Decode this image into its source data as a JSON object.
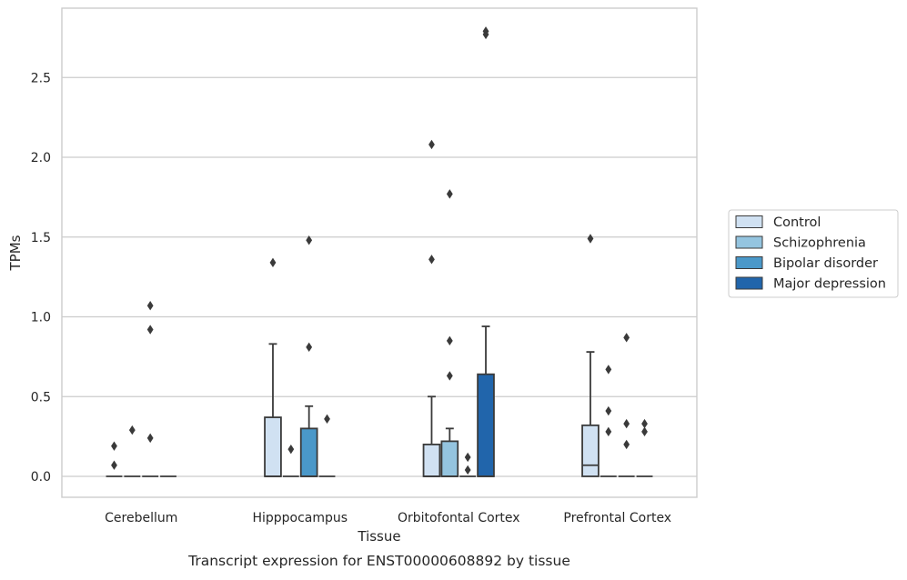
{
  "chart_data": {
    "type": "box",
    "xlabel": "Tissue",
    "ylabel": "TPMs",
    "caption": "Transcript expression for ENST00000608892 by tissue",
    "ylim": [
      -0.14,
      2.95
    ],
    "yticks": [
      "0.0",
      "0.5",
      "1.0",
      "1.5",
      "2.0",
      "2.5"
    ],
    "ytick_values": [
      0.0,
      0.5,
      1.0,
      1.5,
      2.0,
      2.5
    ],
    "grid": "horizontal",
    "legend_position": "right",
    "categories": [
      "Cerebellum",
      "Hipppocampus",
      "Orbitofontal Cortex",
      "Prefrontal Cortex"
    ],
    "series": [
      {
        "name": "Control",
        "color": "#d0e1f2",
        "boxes": [
          {
            "q1": 0,
            "median": 0,
            "q3": 0,
            "whisker_low": 0,
            "whisker_high": 0,
            "outliers": [
              0.07,
              0.19
            ]
          },
          {
            "q1": 0,
            "median": 0,
            "q3": 0.37,
            "whisker_low": 0,
            "whisker_high": 0.83,
            "outliers": [
              1.34
            ]
          },
          {
            "q1": 0,
            "median": 0,
            "q3": 0.2,
            "whisker_low": 0,
            "whisker_high": 0.5,
            "outliers": [
              1.36,
              2.08
            ]
          },
          {
            "q1": 0,
            "median": 0.07,
            "q3": 0.32,
            "whisker_low": 0,
            "whisker_high": 0.78,
            "outliers": [
              1.49
            ]
          }
        ]
      },
      {
        "name": "Schizophrenia",
        "color": "#94c4df",
        "boxes": [
          {
            "q1": 0,
            "median": 0,
            "q3": 0,
            "whisker_low": 0,
            "whisker_high": 0,
            "outliers": [
              0.29
            ]
          },
          {
            "q1": 0,
            "median": 0,
            "q3": 0,
            "whisker_low": 0,
            "whisker_high": 0,
            "outliers": [
              0.17
            ]
          },
          {
            "q1": 0,
            "median": 0,
            "q3": 0.22,
            "whisker_low": 0,
            "whisker_high": 0.3,
            "outliers": [
              0.63,
              0.85,
              1.77
            ]
          },
          {
            "q1": 0,
            "median": 0,
            "q3": 0,
            "whisker_low": 0,
            "whisker_high": 0,
            "outliers": [
              0.28,
              0.41,
              0.67
            ]
          }
        ]
      },
      {
        "name": "Bipolar disorder",
        "color": "#4a98c9",
        "boxes": [
          {
            "q1": 0,
            "median": 0,
            "q3": 0,
            "whisker_low": 0,
            "whisker_high": 0,
            "outliers": [
              0.24,
              0.92,
              1.07
            ]
          },
          {
            "q1": 0,
            "median": 0,
            "q3": 0.3,
            "whisker_low": 0,
            "whisker_high": 0.44,
            "outliers": [
              0.81,
              1.48
            ]
          },
          {
            "q1": 0,
            "median": 0,
            "q3": 0,
            "whisker_low": 0,
            "whisker_high": 0,
            "outliers": [
              0.04,
              0.12
            ]
          },
          {
            "q1": 0,
            "median": 0,
            "q3": 0,
            "whisker_low": 0,
            "whisker_high": 0,
            "outliers": [
              0.2,
              0.33,
              0.87
            ]
          }
        ]
      },
      {
        "name": "Major depression",
        "color": "#2165ab",
        "boxes": [
          {
            "q1": 0,
            "median": 0,
            "q3": 0,
            "whisker_low": 0,
            "whisker_high": 0,
            "outliers": []
          },
          {
            "q1": 0,
            "median": 0,
            "q3": 0,
            "whisker_low": 0,
            "whisker_high": 0,
            "outliers": [
              0.36
            ]
          },
          {
            "q1": 0,
            "median": 0,
            "q3": 0.64,
            "whisker_low": 0,
            "whisker_high": 0.94,
            "outliers": [
              2.77,
              2.79
            ]
          },
          {
            "q1": 0,
            "median": 0,
            "q3": 0,
            "whisker_low": 0,
            "whisker_high": 0,
            "outliers": [
              0.28,
              0.33
            ]
          }
        ]
      }
    ]
  }
}
